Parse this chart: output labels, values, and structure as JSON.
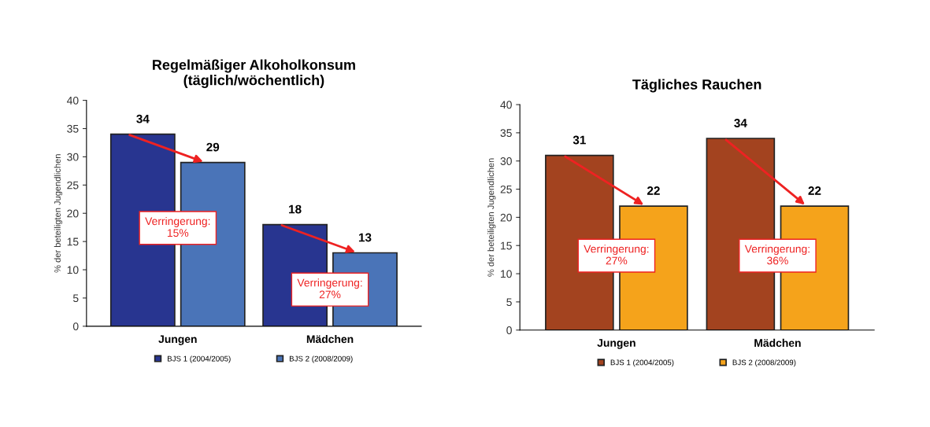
{
  "chart_data": [
    {
      "type": "bar",
      "title": "Regelmäßiger Alkoholkonsum\n(täglich/wöchentlich)",
      "ylabel": "% der beteiligten Jugendlichen",
      "categories": [
        "Jungen",
        "Mädchen"
      ],
      "series": [
        {
          "name": "BJS 1 (2004/2005)",
          "color": "#283590",
          "values": [
            34,
            18
          ]
        },
        {
          "name": "BJS 2 (2008/2009)",
          "color": "#4a74b8",
          "values": [
            29,
            13
          ]
        }
      ],
      "ylim": [
        0,
        40
      ],
      "yticks": [
        0,
        5,
        10,
        15,
        20,
        25,
        30,
        35,
        40
      ],
      "data_labels": true,
      "grid": false,
      "legend": "bottom",
      "annotations": [
        "Verringerung:\n15%",
        "Verringerung:\n27%"
      ]
    },
    {
      "type": "bar",
      "title": "Tägliches Rauchen",
      "ylabel": "% der beteiligten Jugendlichen",
      "categories": [
        "Jungen",
        "Mädchen"
      ],
      "series": [
        {
          "name": "BJS 1 (2004/2005)",
          "color": "#a3431f",
          "values": [
            31,
            34
          ]
        },
        {
          "name": "BJS 2 (2008/2009)",
          "color": "#f5a31b",
          "values": [
            22,
            22
          ]
        }
      ],
      "ylim": [
        0,
        40
      ],
      "yticks": [
        0,
        5,
        10,
        15,
        20,
        25,
        30,
        35,
        40
      ],
      "data_labels": true,
      "grid": false,
      "legend": "bottom",
      "annotations": [
        "Verringerung:\n27%",
        "Verringerung:\n36%"
      ]
    }
  ]
}
